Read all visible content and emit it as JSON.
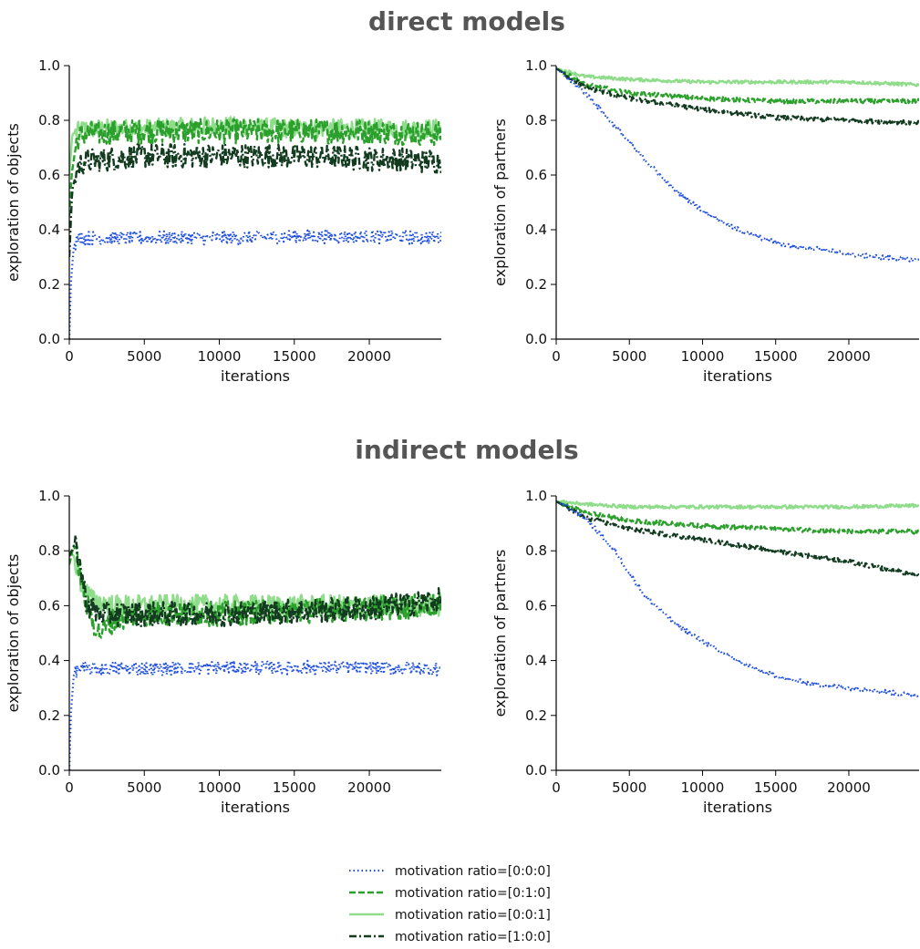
{
  "figure": {
    "section_titles": [
      "direct models",
      "indirect models"
    ]
  },
  "legend": {
    "entries": [
      {
        "label": "motivation ratio=[0:0:0]",
        "color": "#1f4fe0",
        "dash": "dotted"
      },
      {
        "label": "motivation ratio=[0:1:0]",
        "color": "#2ca02c",
        "dash": "dashed"
      },
      {
        "label": "motivation ratio=[0:0:1]",
        "color": "#8fdc8a",
        "dash": "solid"
      },
      {
        "label": "motivation ratio=[1:0:0]",
        "color": "#123b1f",
        "dash": "dashdot"
      }
    ]
  },
  "chart_data": [
    {
      "type": "line",
      "section": "direct models",
      "xlabel": "iterations",
      "ylabel": "exploration of objects",
      "xlim": [
        0,
        24800
      ],
      "ylim": [
        0.0,
        1.0
      ],
      "xticks": [
        0,
        5000,
        10000,
        15000,
        20000
      ],
      "yticks": [
        0.0,
        0.2,
        0.4,
        0.6,
        0.8,
        1.0
      ],
      "grid": false,
      "series": [
        {
          "name": "motivation ratio=[0:0:0]",
          "noise": 0.025,
          "points": [
            [
              0,
              0.0
            ],
            [
              100,
              0.2
            ],
            [
              300,
              0.34
            ],
            [
              600,
              0.37
            ],
            [
              1000,
              0.37
            ],
            [
              5000,
              0.37
            ],
            [
              10000,
              0.37
            ],
            [
              15000,
              0.375
            ],
            [
              20000,
              0.375
            ],
            [
              24800,
              0.37
            ]
          ]
        },
        {
          "name": "motivation ratio=[0:1:0]",
          "noise": 0.045,
          "points": [
            [
              0,
              0.45
            ],
            [
              150,
              0.6
            ],
            [
              500,
              0.73
            ],
            [
              1000,
              0.75
            ],
            [
              5000,
              0.76
            ],
            [
              10000,
              0.76
            ],
            [
              15000,
              0.76
            ],
            [
              20000,
              0.76
            ],
            [
              24800,
              0.75
            ]
          ]
        },
        {
          "name": "motivation ratio=[0:0:1]",
          "noise": 0.035,
          "points": [
            [
              0,
              0.6
            ],
            [
              200,
              0.75
            ],
            [
              1000,
              0.77
            ],
            [
              5000,
              0.77
            ],
            [
              10000,
              0.78
            ],
            [
              15000,
              0.77
            ],
            [
              20000,
              0.77
            ],
            [
              24800,
              0.77
            ]
          ]
        },
        {
          "name": "motivation ratio=[1:0:0]",
          "noise": 0.045,
          "points": [
            [
              0,
              0.3
            ],
            [
              200,
              0.55
            ],
            [
              600,
              0.63
            ],
            [
              1000,
              0.65
            ],
            [
              5000,
              0.67
            ],
            [
              10000,
              0.67
            ],
            [
              15000,
              0.67
            ],
            [
              20000,
              0.66
            ],
            [
              24800,
              0.65
            ]
          ]
        }
      ]
    },
    {
      "type": "line",
      "section": "direct models",
      "xlabel": "iterations",
      "ylabel": "exploration of partners",
      "xlim": [
        0,
        24800
      ],
      "ylim": [
        0.0,
        1.0
      ],
      "xticks": [
        0,
        5000,
        10000,
        15000,
        20000
      ],
      "yticks": [
        0.0,
        0.2,
        0.4,
        0.6,
        0.8,
        1.0
      ],
      "grid": false,
      "series": [
        {
          "name": "motivation ratio=[0:0:0]",
          "noise": 0.008,
          "points": [
            [
              0,
              0.99
            ],
            [
              2000,
              0.9
            ],
            [
              4000,
              0.78
            ],
            [
              6000,
              0.66
            ],
            [
              8000,
              0.55
            ],
            [
              10000,
              0.47
            ],
            [
              12000,
              0.41
            ],
            [
              14000,
              0.37
            ],
            [
              16000,
              0.34
            ],
            [
              18000,
              0.33
            ],
            [
              20000,
              0.31
            ],
            [
              22000,
              0.3
            ],
            [
              24800,
              0.29
            ]
          ]
        },
        {
          "name": "motivation ratio=[0:1:0]",
          "noise": 0.008,
          "points": [
            [
              0,
              0.99
            ],
            [
              2000,
              0.93
            ],
            [
              5000,
              0.9
            ],
            [
              10000,
              0.88
            ],
            [
              15000,
              0.87
            ],
            [
              20000,
              0.87
            ],
            [
              24800,
              0.87
            ]
          ]
        },
        {
          "name": "motivation ratio=[0:0:1]",
          "noise": 0.006,
          "points": [
            [
              0,
              0.99
            ],
            [
              2000,
              0.96
            ],
            [
              5000,
              0.95
            ],
            [
              10000,
              0.94
            ],
            [
              15000,
              0.94
            ],
            [
              20000,
              0.94
            ],
            [
              24800,
              0.93
            ]
          ]
        },
        {
          "name": "motivation ratio=[1:0:0]",
          "noise": 0.008,
          "points": [
            [
              0,
              0.99
            ],
            [
              2000,
              0.92
            ],
            [
              5000,
              0.88
            ],
            [
              10000,
              0.84
            ],
            [
              15000,
              0.81
            ],
            [
              20000,
              0.8
            ],
            [
              24800,
              0.79
            ]
          ]
        }
      ]
    },
    {
      "type": "line",
      "section": "indirect models",
      "xlabel": "iterations",
      "ylabel": "exploration of objects",
      "xlim": [
        0,
        24800
      ],
      "ylim": [
        0.0,
        1.0
      ],
      "xticks": [
        0,
        5000,
        10000,
        15000,
        20000
      ],
      "yticks": [
        0.0,
        0.2,
        0.4,
        0.6,
        0.8,
        1.0
      ],
      "grid": false,
      "series": [
        {
          "name": "motivation ratio=[0:0:0]",
          "noise": 0.025,
          "points": [
            [
              0,
              0.0
            ],
            [
              100,
              0.2
            ],
            [
              300,
              0.35
            ],
            [
              600,
              0.37
            ],
            [
              1000,
              0.37
            ],
            [
              5000,
              0.37
            ],
            [
              10000,
              0.375
            ],
            [
              15000,
              0.375
            ],
            [
              20000,
              0.375
            ],
            [
              24800,
              0.37
            ]
          ]
        },
        {
          "name": "motivation ratio=[0:1:0]",
          "noise": 0.045,
          "points": [
            [
              0,
              0.75
            ],
            [
              300,
              0.82
            ],
            [
              600,
              0.76
            ],
            [
              1000,
              0.63
            ],
            [
              1500,
              0.55
            ],
            [
              2000,
              0.5
            ],
            [
              3000,
              0.55
            ],
            [
              5000,
              0.57
            ],
            [
              10000,
              0.57
            ],
            [
              15000,
              0.58
            ],
            [
              20000,
              0.59
            ],
            [
              24800,
              0.6
            ]
          ]
        },
        {
          "name": "motivation ratio=[0:0:1]",
          "noise": 0.04,
          "points": [
            [
              0,
              0.8
            ],
            [
              300,
              0.78
            ],
            [
              800,
              0.68
            ],
            [
              1500,
              0.62
            ],
            [
              3000,
              0.6
            ],
            [
              5000,
              0.6
            ],
            [
              10000,
              0.6
            ],
            [
              15000,
              0.6
            ],
            [
              20000,
              0.6
            ],
            [
              24800,
              0.6
            ]
          ]
        },
        {
          "name": "motivation ratio=[1:0:0]",
          "noise": 0.045,
          "points": [
            [
              0,
              0.78
            ],
            [
              400,
              0.83
            ],
            [
              700,
              0.75
            ],
            [
              1200,
              0.6
            ],
            [
              2000,
              0.57
            ],
            [
              5000,
              0.57
            ],
            [
              10000,
              0.57
            ],
            [
              15000,
              0.58
            ],
            [
              20000,
              0.59
            ],
            [
              24800,
              0.62
            ]
          ]
        }
      ]
    },
    {
      "type": "line",
      "section": "indirect models",
      "xlabel": "iterations",
      "ylabel": "exploration of partners",
      "xlim": [
        0,
        24800
      ],
      "ylim": [
        0.0,
        1.0
      ],
      "xticks": [
        0,
        5000,
        10000,
        15000,
        20000
      ],
      "yticks": [
        0.0,
        0.2,
        0.4,
        0.6,
        0.8,
        1.0
      ],
      "grid": false,
      "series": [
        {
          "name": "motivation ratio=[0:0:0]",
          "noise": 0.008,
          "points": [
            [
              0,
              0.98
            ],
            [
              2000,
              0.92
            ],
            [
              4000,
              0.8
            ],
            [
              6000,
              0.64
            ],
            [
              8000,
              0.54
            ],
            [
              10000,
              0.47
            ],
            [
              12000,
              0.41
            ],
            [
              14000,
              0.36
            ],
            [
              16000,
              0.33
            ],
            [
              18000,
              0.31
            ],
            [
              20000,
              0.3
            ],
            [
              22000,
              0.29
            ],
            [
              24800,
              0.27
            ]
          ]
        },
        {
          "name": "motivation ratio=[0:1:0]",
          "noise": 0.008,
          "points": [
            [
              0,
              0.98
            ],
            [
              2000,
              0.94
            ],
            [
              5000,
              0.91
            ],
            [
              10000,
              0.89
            ],
            [
              15000,
              0.88
            ],
            [
              20000,
              0.87
            ],
            [
              24800,
              0.87
            ]
          ]
        },
        {
          "name": "motivation ratio=[0:0:1]",
          "noise": 0.006,
          "points": [
            [
              0,
              0.98
            ],
            [
              2000,
              0.97
            ],
            [
              5000,
              0.96
            ],
            [
              10000,
              0.96
            ],
            [
              15000,
              0.96
            ],
            [
              20000,
              0.96
            ],
            [
              24800,
              0.965
            ]
          ]
        },
        {
          "name": "motivation ratio=[1:0:0]",
          "noise": 0.008,
          "points": [
            [
              0,
              0.98
            ],
            [
              2000,
              0.92
            ],
            [
              5000,
              0.88
            ],
            [
              10000,
              0.84
            ],
            [
              15000,
              0.8
            ],
            [
              20000,
              0.76
            ],
            [
              24800,
              0.71
            ]
          ]
        }
      ]
    }
  ]
}
